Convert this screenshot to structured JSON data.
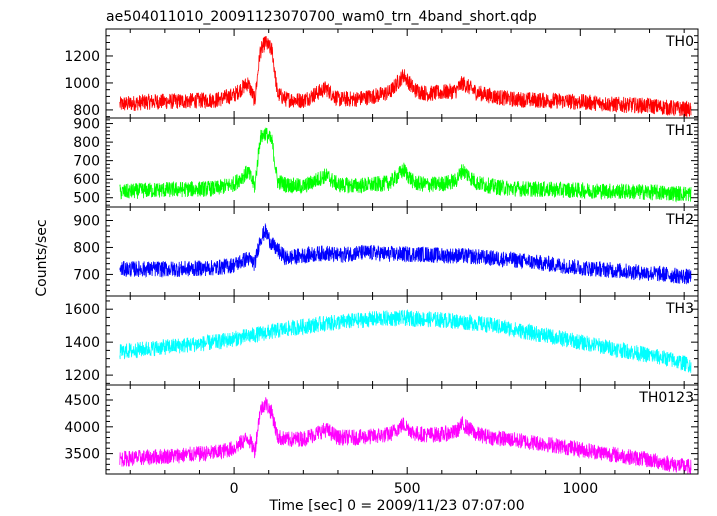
{
  "chart_data": {
    "type": "line",
    "title": "ae504011010_20091123070700_wam0_trn_4band_short.qdp",
    "xlabel": "Time [sec] 0 = 2009/11/23 07:07:00",
    "ylabel": "Counts/sec",
    "xlim": [
      -370,
      1340
    ],
    "x_ticks": [
      0,
      500,
      1000
    ],
    "panels": [
      {
        "name": "TH0",
        "color": "#ff0000",
        "ylim": [
          740,
          1400
        ],
        "y_ticks": [
          800,
          1000,
          1200
        ],
        "x": [
          -330,
          -250,
          -150,
          -50,
          0,
          40,
          60,
          75,
          90,
          110,
          125,
          150,
          200,
          265,
          300,
          350,
          400,
          450,
          490,
          520,
          560,
          600,
          640,
          660,
          700,
          750,
          800,
          900,
          1000,
          1100,
          1200,
          1320
        ],
        "y": [
          840,
          860,
          865,
          875,
          910,
          1000,
          870,
          1230,
          1300,
          1240,
          920,
          880,
          870,
          960,
          880,
          880,
          900,
          930,
          1060,
          950,
          920,
          930,
          940,
          1000,
          930,
          900,
          880,
          870,
          860,
          840,
          830,
          800
        ]
      },
      {
        "name": "TH1",
        "color": "#00ff00",
        "ylim": [
          450,
          930
        ],
        "y_ticks": [
          500,
          600,
          700,
          800,
          900
        ],
        "x": [
          -330,
          -250,
          -150,
          -50,
          0,
          40,
          60,
          75,
          90,
          110,
          125,
          150,
          200,
          265,
          300,
          350,
          400,
          450,
          490,
          520,
          560,
          600,
          640,
          660,
          700,
          750,
          800,
          900,
          1000,
          1100,
          1200,
          1320
        ],
        "y": [
          530,
          540,
          545,
          550,
          575,
          640,
          560,
          820,
          850,
          800,
          590,
          570,
          560,
          620,
          570,
          565,
          570,
          580,
          650,
          580,
          570,
          575,
          590,
          650,
          580,
          560,
          550,
          545,
          540,
          535,
          530,
          520
        ]
      },
      {
        "name": "TH2",
        "color": "#0000ff",
        "ylim": [
          620,
          950
        ],
        "y_ticks": [
          700,
          800,
          900
        ],
        "x": [
          -330,
          -250,
          -150,
          -50,
          0,
          40,
          60,
          75,
          90,
          110,
          150,
          200,
          265,
          300,
          350,
          400,
          450,
          500,
          550,
          600,
          650,
          700,
          800,
          900,
          1000,
          1100,
          1200,
          1320
        ],
        "y": [
          720,
          720,
          720,
          725,
          735,
          760,
          740,
          830,
          860,
          810,
          760,
          770,
          780,
          770,
          780,
          780,
          775,
          775,
          775,
          770,
          770,
          765,
          755,
          740,
          725,
          715,
          705,
          690
        ]
      },
      {
        "name": "TH3",
        "color": "#00ffff",
        "ylim": [
          1140,
          1680
        ],
        "y_ticks": [
          1200,
          1400,
          1600
        ],
        "x": [
          -330,
          -250,
          -150,
          -50,
          0,
          50,
          100,
          150,
          200,
          250,
          300,
          350,
          400,
          450,
          500,
          550,
          600,
          650,
          700,
          750,
          800,
          850,
          900,
          950,
          1000,
          1050,
          1100,
          1150,
          1200,
          1250,
          1320
        ],
        "y": [
          1340,
          1360,
          1380,
          1400,
          1420,
          1440,
          1460,
          1480,
          1495,
          1510,
          1520,
          1530,
          1540,
          1545,
          1545,
          1540,
          1535,
          1525,
          1515,
          1500,
          1480,
          1460,
          1440,
          1420,
          1400,
          1380,
          1360,
          1340,
          1320,
          1300,
          1260
        ]
      },
      {
        "name": "TH0123",
        "color": "#ff00ff",
        "ylim": [
          3120,
          4780
        ],
        "y_ticks": [
          3500,
          4000,
          4500
        ],
        "x": [
          -330,
          -250,
          -150,
          -50,
          0,
          40,
          60,
          75,
          90,
          110,
          125,
          150,
          200,
          265,
          300,
          350,
          400,
          450,
          490,
          520,
          560,
          600,
          640,
          660,
          700,
          750,
          800,
          900,
          1000,
          1100,
          1200,
          1320
        ],
        "y": [
          3400,
          3430,
          3470,
          3520,
          3600,
          3800,
          3550,
          4300,
          4450,
          4250,
          3820,
          3760,
          3780,
          3950,
          3800,
          3800,
          3820,
          3860,
          4050,
          3880,
          3850,
          3860,
          3900,
          4050,
          3860,
          3800,
          3760,
          3680,
          3580,
          3480,
          3380,
          3240
        ]
      }
    ]
  }
}
